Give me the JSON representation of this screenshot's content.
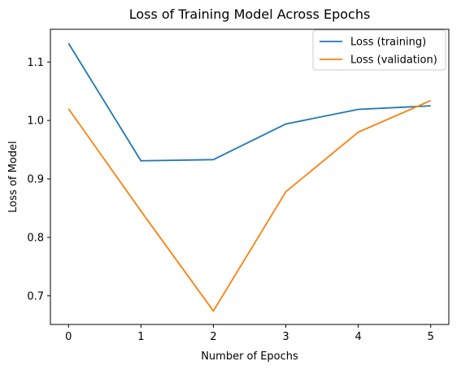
{
  "chart_data": {
    "type": "line",
    "title": "Loss of Training Model Across Epochs",
    "xlabel": "Number of Epochs",
    "ylabel": "Loss of Model",
    "x": [
      0,
      1,
      2,
      3,
      4,
      5
    ],
    "xticks": [
      0,
      1,
      2,
      3,
      4,
      5
    ],
    "yticks": [
      0.7,
      0.8,
      0.9,
      1.0,
      1.1
    ],
    "ytick_labels": [
      "0.7",
      "0.8",
      "0.9",
      "1.0",
      "1.1"
    ],
    "xlim": [
      -0.25,
      5.25
    ],
    "ylim": [
      0.651,
      1.156
    ],
    "grid": false,
    "legend_position": "top-right",
    "series": [
      {
        "name": "Loss (training)",
        "color": "#1f77b4",
        "values": [
          1.132,
          0.931,
          0.933,
          0.994,
          1.019,
          1.025
        ]
      },
      {
        "name": "Loss (validation)",
        "color": "#ff7f0e",
        "values": [
          1.02,
          0.845,
          0.674,
          0.878,
          0.98,
          1.034
        ]
      }
    ]
  }
}
